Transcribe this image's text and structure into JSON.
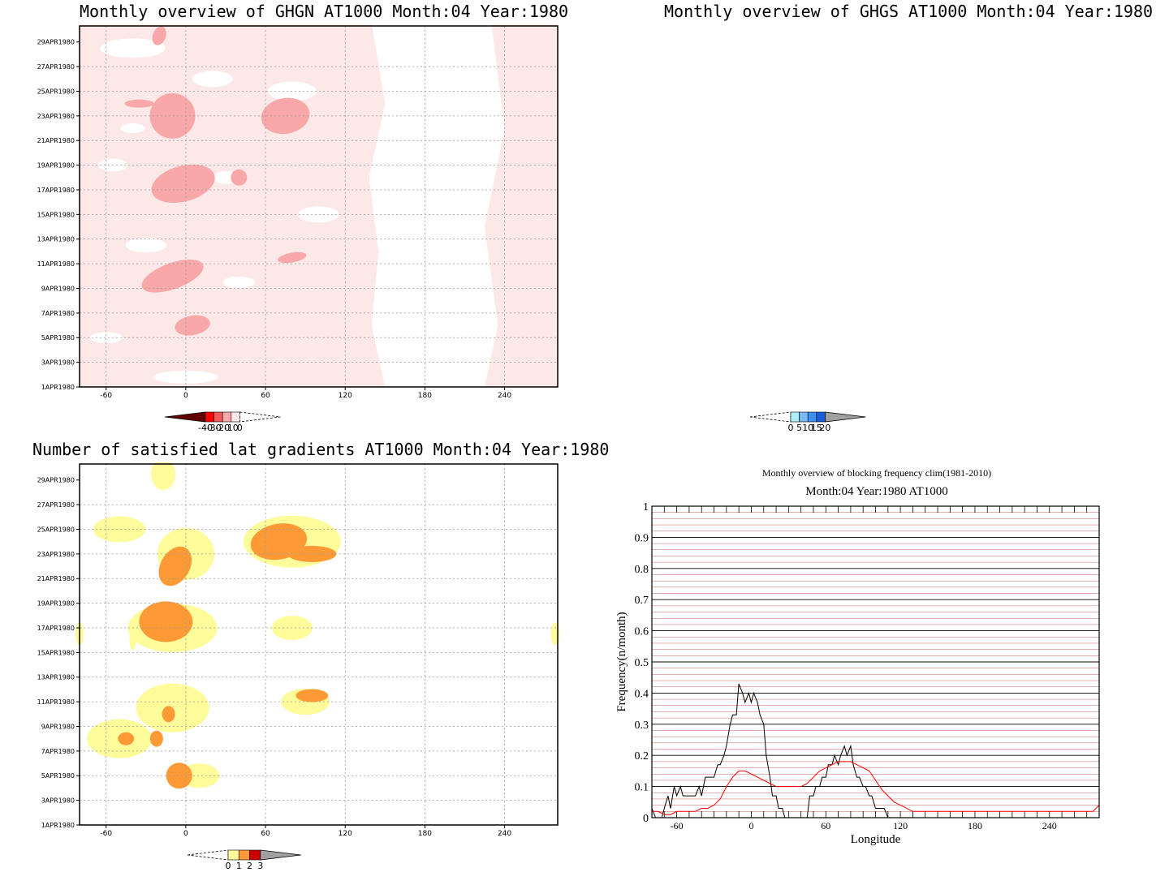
{
  "colors": {
    "ghgn": [
      "#fde8e8",
      "#f8a8a8",
      "#f05a5a",
      "#ff0000",
      "#600000"
    ],
    "ghgs": [
      "#aeeef8",
      "#78b8f5",
      "#3d8ff0",
      "#1a5fd8",
      "#a0a0a0"
    ],
    "lat": [
      "#fefb9a",
      "#fe9a36",
      "#cc0000",
      "#a0a0a0"
    ],
    "clim_line": "#ff0000",
    "year_line": "#000000",
    "grid_red": "#c06060"
  },
  "date_ticks": [
    "29APR1980",
    "27APR1980",
    "25APR1980",
    "23APR1980",
    "21APR1980",
    "19APR1980",
    "17APR1980",
    "15APR1980",
    "13APR1980",
    "11APR1980",
    "9APR1980",
    "7APR1980",
    "5APR1980",
    "3APR1980",
    "1APR1980"
  ],
  "lon_ticks": [
    "-60",
    "0",
    "60",
    "120",
    "180",
    "240"
  ],
  "panels": {
    "ghgn": {
      "title": "Monthly overview of GHGN AT1000 Month:04 Year:1980",
      "colorbar_labels": [
        "-40",
        "-30",
        "-20",
        "-10",
        "0"
      ]
    },
    "ghgs": {
      "title": "Monthly overview of GHGS AT1000 Month:04 Year:1980",
      "colorbar_labels": [
        "0",
        "5",
        "10",
        "15",
        "20"
      ]
    },
    "lat": {
      "title": "Number of satisfied lat gradients AT1000 Month:04 Year:1980",
      "colorbar_labels": [
        "0",
        "1",
        "2",
        "3"
      ]
    },
    "freq": {
      "title": "Monthly overview of blocking frequency clim(1981-2010)",
      "subtitle": "Month:04 Year:1980  AT1000"
    }
  },
  "chart_data": [
    {
      "type": "heatmap",
      "title": "Monthly overview of GHGN AT1000 Month:04 Year:1980",
      "xlabel": "",
      "ylabel": "",
      "xlim": [
        -80,
        280
      ],
      "ylim": [
        "1APR1980",
        "30APR1980"
      ],
      "levels": [
        -40,
        -30,
        -20,
        -10,
        0
      ],
      "note_regions": [
        {
          "level": -10,
          "lon_range": [
            -80,
            150
          ],
          "days": [
            1,
            30
          ]
        },
        {
          "level": -20,
          "lon_range": [
            -20,
            40
          ],
          "days": [
            15,
            24
          ]
        }
      ]
    },
    {
      "type": "heatmap",
      "title": "Monthly overview of GHGS AT1000 Month:04 Year:1980",
      "xlabel": "",
      "ylabel": "",
      "xlim": [
        -80,
        280
      ],
      "ylim": [
        "1APR1980",
        "30APR1980"
      ],
      "levels": [
        0,
        5,
        10,
        15,
        20
      ]
    },
    {
      "type": "heatmap",
      "title": "Number of satisfied lat gradients AT1000 Month:04 Year:1980",
      "xlabel": "",
      "ylabel": "",
      "xlim": [
        -80,
        280
      ],
      "ylim": [
        "1APR1980",
        "30APR1980"
      ],
      "levels": [
        0,
        1,
        2,
        3
      ]
    },
    {
      "type": "line",
      "title": "Monthly overview of blocking frequency clim(1981-2010)",
      "subtitle": "Month:04 Year:1980  AT1000",
      "xlabel": "Longitude",
      "ylabel": "Frequency(n/month)",
      "xlim": [
        -80,
        280
      ],
      "ylim": [
        0,
        1
      ],
      "xticks": [
        -60,
        0,
        60,
        120,
        180,
        240
      ],
      "yticks": [
        0,
        0.1,
        0.2,
        0.3,
        0.4,
        0.5,
        0.6,
        0.7,
        0.8,
        0.9,
        1
      ],
      "ytick_labels": [
        "0",
        "0.1",
        "0.2",
        "0.3",
        "0.4",
        "0.5",
        "0.6",
        "0.7",
        "0.8",
        "0.9",
        "1"
      ],
      "series": [
        {
          "color": "#000000",
          "x": [
            -80,
            -77,
            -75,
            -72,
            -70,
            -67,
            -65,
            -62,
            -60,
            -57,
            -55,
            -52,
            -50,
            -47,
            -45,
            -42,
            -40,
            -37,
            -35,
            -32,
            -30,
            -27,
            -25,
            -22,
            -20,
            -17,
            -15,
            -12,
            -10,
            -7,
            -5,
            -2,
            0,
            2,
            5,
            7,
            10,
            12,
            15,
            17,
            20,
            22,
            25,
            27,
            30,
            32,
            35,
            37,
            40,
            42,
            45,
            47,
            50,
            52,
            55,
            57,
            60,
            62,
            65,
            67,
            70,
            72,
            75,
            77,
            80,
            82,
            85,
            87,
            90,
            92,
            95,
            97,
            100,
            102,
            105,
            107,
            110,
            112,
            115,
            120,
            180,
            240,
            280
          ],
          "y": [
            0.03,
            0.0,
            0.0,
            0.0,
            0.03,
            0.07,
            0.03,
            0.1,
            0.07,
            0.1,
            0.07,
            0.07,
            0.07,
            0.07,
            0.07,
            0.1,
            0.07,
            0.13,
            0.13,
            0.13,
            0.13,
            0.17,
            0.17,
            0.2,
            0.23,
            0.3,
            0.33,
            0.33,
            0.43,
            0.4,
            0.37,
            0.4,
            0.37,
            0.4,
            0.37,
            0.33,
            0.3,
            0.2,
            0.13,
            0.07,
            0.07,
            0.03,
            0.03,
            0.0,
            0.0,
            0.0,
            0.0,
            0.0,
            0.0,
            0.0,
            0.0,
            0.07,
            0.07,
            0.1,
            0.1,
            0.13,
            0.13,
            0.17,
            0.17,
            0.2,
            0.17,
            0.2,
            0.23,
            0.2,
            0.23,
            0.17,
            0.13,
            0.13,
            0.1,
            0.1,
            0.07,
            0.07,
            0.03,
            0.03,
            0.03,
            0.03,
            0.0,
            0.0,
            0.0,
            0.0,
            0.0,
            0.0,
            0.0
          ]
        },
        {
          "color": "#ff0000",
          "x": [
            -80,
            -75,
            -70,
            -65,
            -60,
            -55,
            -50,
            -45,
            -40,
            -35,
            -30,
            -25,
            -20,
            -15,
            -10,
            -5,
            0,
            5,
            10,
            15,
            20,
            25,
            30,
            35,
            40,
            45,
            50,
            55,
            60,
            65,
            70,
            75,
            80,
            85,
            90,
            95,
            100,
            105,
            110,
            115,
            120,
            130,
            140,
            150,
            160,
            170,
            180,
            190,
            200,
            210,
            220,
            230,
            240,
            250,
            260,
            270,
            275,
            280
          ],
          "y": [
            0.02,
            0.02,
            0.01,
            0.01,
            0.02,
            0.02,
            0.02,
            0.02,
            0.03,
            0.03,
            0.04,
            0.06,
            0.1,
            0.13,
            0.15,
            0.15,
            0.14,
            0.13,
            0.12,
            0.11,
            0.1,
            0.1,
            0.1,
            0.1,
            0.1,
            0.11,
            0.13,
            0.15,
            0.16,
            0.17,
            0.18,
            0.18,
            0.18,
            0.17,
            0.16,
            0.15,
            0.12,
            0.09,
            0.07,
            0.05,
            0.04,
            0.02,
            0.02,
            0.02,
            0.02,
            0.02,
            0.02,
            0.02,
            0.02,
            0.02,
            0.02,
            0.02,
            0.02,
            0.02,
            0.02,
            0.02,
            0.02,
            0.04
          ]
        }
      ]
    }
  ]
}
